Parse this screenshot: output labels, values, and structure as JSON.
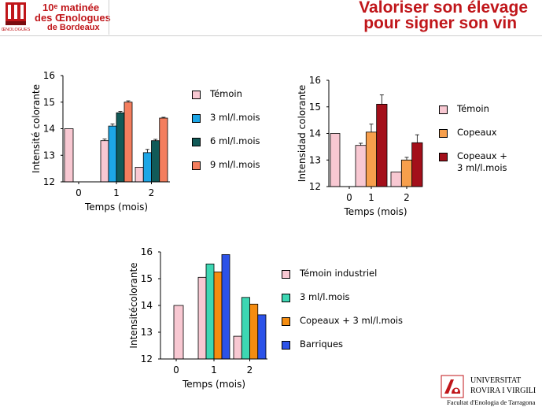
{
  "header": {
    "org_line1": "10ᵉ matinée",
    "org_line2": "des Œnologues",
    "org_line3": "de Bordeaux",
    "logo_caption": "ŒNOLOGUES",
    "title_line1": "Valoriser son élevage",
    "title_line2": "pour signer son vin"
  },
  "colors": {
    "title": "#c0161a",
    "temoin": "#f8c8d2",
    "blue": "#1da6e6",
    "darkteal": "#115a58",
    "salmon": "#f47e5e",
    "orange": "#f79f4c",
    "darkred": "#a30f1a",
    "teal": "#3dd7b3",
    "orange2": "#f48c10",
    "royalblue": "#2c52e8"
  },
  "chart_data": [
    {
      "type": "bar",
      "ylabel": "Intensité colorante",
      "xlabel": "Temps (mois)",
      "ylim": [
        12,
        16
      ],
      "yticks": [
        "12",
        "13",
        "14",
        "15",
        "16"
      ],
      "categories": [
        "0",
        "1",
        "2"
      ],
      "series": [
        {
          "name": "Témoin",
          "color": "#f8c8d2",
          "values": [
            14.0,
            13.55,
            12.55
          ],
          "errors": [
            0,
            0.06,
            0
          ]
        },
        {
          "name": "3 ml/l.mois",
          "color": "#1da6e6",
          "values": [
            null,
            14.1,
            13.1
          ],
          "errors": [
            0,
            0.08,
            0.12
          ]
        },
        {
          "name": "6 ml/l.mois",
          "color": "#115a58",
          "values": [
            null,
            14.6,
            13.55
          ],
          "errors": [
            0,
            0.05,
            0.05
          ]
        },
        {
          "name": "9 ml/l.mois",
          "color": "#f47e5e",
          "values": [
            null,
            15.0,
            14.4
          ],
          "errors": [
            0,
            0.05,
            0.03
          ]
        }
      ]
    },
    {
      "type": "bar",
      "ylabel": "Intensidad colorante",
      "xlabel": "Temps (mois)",
      "ylim": [
        12,
        16
      ],
      "yticks": [
        "12",
        "13",
        "14",
        "15",
        "16"
      ],
      "categories": [
        "0",
        "1",
        "2"
      ],
      "series": [
        {
          "name": "Témoin",
          "color": "#f8c8d2",
          "values": [
            14.0,
            13.55,
            12.55
          ],
          "errors": [
            0,
            0.08,
            0
          ]
        },
        {
          "name": "Copeaux",
          "color": "#f79f4c",
          "values": [
            null,
            14.05,
            13.0
          ],
          "errors": [
            0,
            0.3,
            0.1
          ]
        },
        {
          "name": "Copeaux +\n3 ml/l.mois",
          "color": "#a30f1a",
          "values": [
            null,
            15.1,
            13.65
          ],
          "errors": [
            0,
            0.35,
            0.3
          ]
        }
      ]
    },
    {
      "type": "bar",
      "ylabel": "Intensitécolorante",
      "xlabel": "Temps (mois)",
      "ylim": [
        12,
        16
      ],
      "yticks": [
        "12",
        "13",
        "14",
        "15",
        "16"
      ],
      "categories": [
        "0",
        "1",
        "2"
      ],
      "series": [
        {
          "name": "Témoin industriel",
          "color": "#f8c8d2",
          "values": [
            14.0,
            15.05,
            12.85
          ]
        },
        {
          "name": "3 ml/l.mois",
          "color": "#3dd7b3",
          "values": [
            null,
            15.55,
            14.3
          ]
        },
        {
          "name": "Copeaux + 3 ml/l.mois",
          "color": "#f48c10",
          "values": [
            null,
            15.25,
            14.05
          ]
        },
        {
          "name": "Barriques",
          "color": "#2c52e8",
          "values": [
            null,
            15.9,
            13.65
          ]
        }
      ]
    }
  ],
  "footer": {
    "university_line1": "UNIVERSITAT",
    "university_line2": "ROVIRA I VIRGILI",
    "faculty": "Facultat d'Enologia de Tarragona"
  }
}
